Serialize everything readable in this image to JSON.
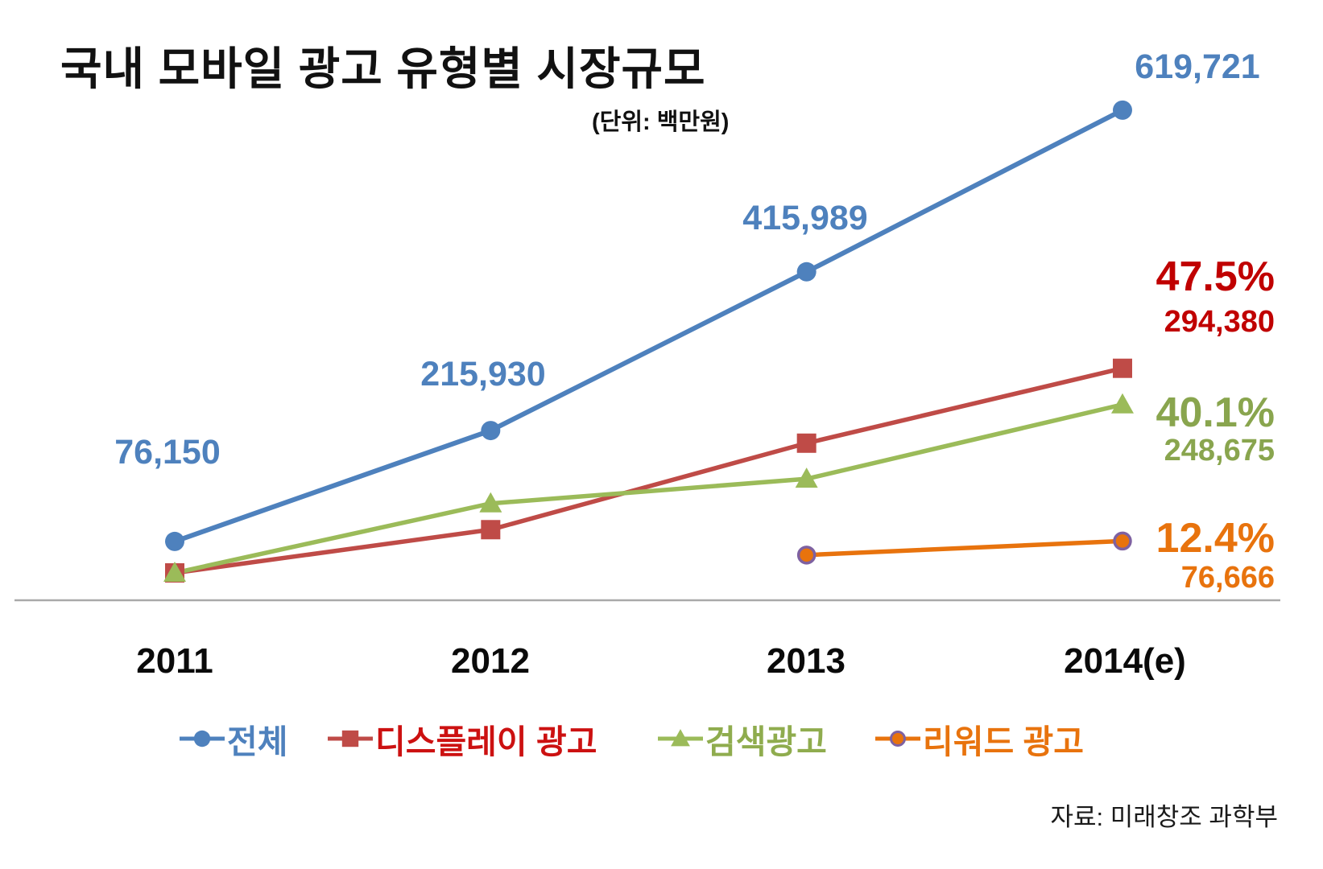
{
  "title": "국내 모바일 광고 유형별 시장규모",
  "unit_note": "(단위: 백만원)",
  "source": "자료: 미래창조 과학부",
  "colors": {
    "axis": "#A9A9A9",
    "total_blue": "#4E81BD",
    "display_red_line": "#BF4B47",
    "display_red_text": "#C00000",
    "search_green_line": "#9BBB59",
    "search_green_text": "#89A54E",
    "reward_orange": "#E8730D",
    "reward_marker_border": "#7E61A1"
  },
  "chart_data": {
    "type": "line",
    "title": "국내 모바일 광고 유형별 시장규모",
    "unit": "백만원",
    "x_categories": [
      "2011",
      "2012",
      "2013",
      "2014(e)"
    ],
    "ylim": [
      0,
      680000
    ],
    "grid": false,
    "legend_position": "bottom",
    "estimation_note": "unlabeled points estimated from plotted positions",
    "series": [
      {
        "name": "전체",
        "marker": "circle",
        "color": "#4E81BD",
        "values": [
          76150,
          215930,
          415989,
          619721
        ],
        "point_labels": [
          "76,150",
          "215,930",
          "415,989",
          "619,721"
        ]
      },
      {
        "name": "디스플레이 광고",
        "marker": "square",
        "color": "#BF4B47",
        "values": [
          36500,
          91000,
          200000,
          294380
        ],
        "end_label": {
          "percent": "47.5%",
          "value": "294,380"
        }
      },
      {
        "name": "검색광고",
        "marker": "triangle",
        "color": "#9BBB59",
        "values": [
          36500,
          124000,
          155000,
          248675
        ],
        "end_label": {
          "percent": "40.1%",
          "value": "248,675"
        }
      },
      {
        "name": "리워드 광고",
        "marker": "circle",
        "marker_border": "#7E61A1",
        "color": "#E8730D",
        "values": [
          null,
          null,
          59000,
          76666
        ],
        "end_label": {
          "percent": "12.4%",
          "value": "76,666"
        }
      }
    ]
  }
}
